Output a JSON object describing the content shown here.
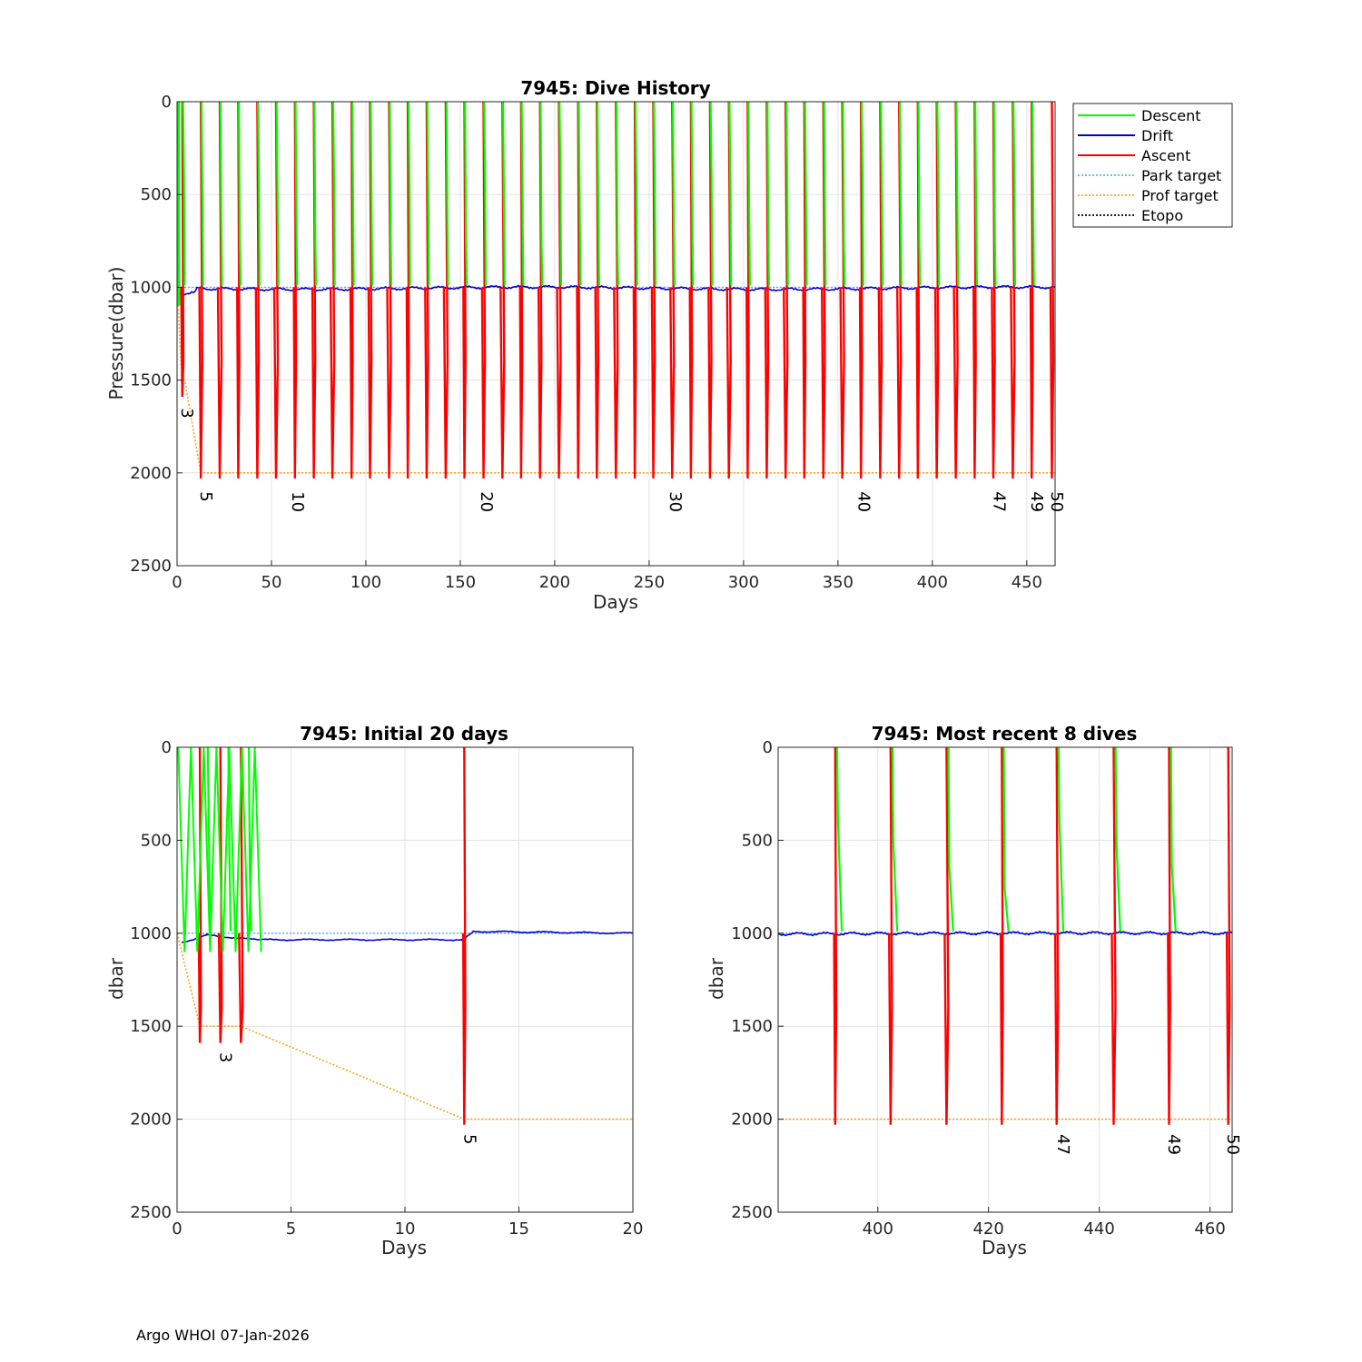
{
  "footer": "Argo WHOI 07-Jan-2026",
  "legend": [
    {
      "label": "Descent",
      "color": "#00ff00",
      "dash": "solid"
    },
    {
      "label": "Drift",
      "color": "#0000cc",
      "dash": "solid"
    },
    {
      "label": "Ascent",
      "color": "#ff0000",
      "dash": "solid"
    },
    {
      "label": "Park target",
      "color": "#4db8e8",
      "dash": "dotted"
    },
    {
      "label": "Prof target",
      "color": "#f5a623",
      "dash": "dotted"
    },
    {
      "label": "Etopo",
      "color": "#000000",
      "dash": "dotted"
    }
  ],
  "chart_data": [
    {
      "id": "history",
      "type": "line",
      "title": "7945: Dive History",
      "xlabel": "Days",
      "ylabel": "Pressure(dbar)",
      "xlim": [
        0,
        465
      ],
      "ylim": [
        0,
        2500
      ],
      "xticks": [
        0,
        50,
        100,
        150,
        200,
        250,
        300,
        350,
        400,
        450
      ],
      "yticks": [
        0,
        500,
        1000,
        1500,
        2000,
        2500
      ],
      "dive_days": [
        2.8,
        12.6,
        22.6,
        32.4,
        42.5,
        52.4,
        62.4,
        72.4,
        82.3,
        92.4,
        102.2,
        112.3,
        122.2,
        132.2,
        142.3,
        152.2,
        162.3,
        172.3,
        182.2,
        192.2,
        202.2,
        212.4,
        222.3,
        232.4,
        242.4,
        252.2,
        262.2,
        272.1,
        282.2,
        292.2,
        302.2,
        312.3,
        322.3,
        332.2,
        342.3,
        352.3,
        362.2,
        372.4,
        382.4,
        392.3,
        402.3,
        412.4,
        422.4,
        432.3,
        442.6,
        452.6,
        463.3
      ],
      "park_target_dbar": 1000,
      "prof_target": [
        [
          0,
          1000
        ],
        [
          2.5,
          1500
        ],
        [
          4,
          1500
        ],
        [
          12.6,
          2000
        ],
        [
          465,
          2000
        ]
      ],
      "cycle_labels": [
        {
          "text": "3",
          "day": 2.5,
          "p": 1650
        },
        {
          "text": "5",
          "day": 12.6,
          "p": 2100
        },
        {
          "text": "10",
          "day": 61,
          "p": 2100
        },
        {
          "text": "20",
          "day": 161,
          "p": 2100
        },
        {
          "text": "30",
          "day": 261,
          "p": 2100
        },
        {
          "text": "40",
          "day": 361,
          "p": 2100
        },
        {
          "text": "47",
          "day": 432.5,
          "p": 2100
        },
        {
          "text": "49",
          "day": 452.5,
          "p": 2100
        },
        {
          "text": "50",
          "day": 463,
          "p": 2100
        }
      ]
    },
    {
      "id": "initial",
      "type": "line",
      "title": "7945: Initial 20 days",
      "xlabel": "Days",
      "ylabel": "dbar",
      "xlim": [
        0,
        20
      ],
      "ylim": [
        0,
        2500
      ],
      "xticks": [
        0,
        5,
        10,
        15,
        20
      ],
      "yticks": [
        0,
        500,
        1000,
        1500,
        2000,
        2500
      ],
      "dive_days": [
        1.0,
        1.9,
        2.8,
        12.6
      ],
      "park_target_dbar": 1000,
      "prof_target": [
        [
          0,
          1000
        ],
        [
          1.0,
          1500
        ],
        [
          2.8,
          1500
        ],
        [
          12.6,
          2000
        ],
        [
          20,
          2000
        ]
      ],
      "drift_level": [
        [
          0.2,
          1050
        ],
        [
          1.3,
          1010
        ],
        [
          3.5,
          1035
        ],
        [
          12.5,
          1035
        ],
        [
          13.0,
          990
        ],
        [
          20,
          1000
        ]
      ],
      "cycle_labels": [
        {
          "text": "3",
          "day": 1.9,
          "p": 1640
        },
        {
          "text": "5",
          "day": 12.6,
          "p": 2080
        }
      ]
    },
    {
      "id": "recent",
      "type": "line",
      "title": "7945: Most recent 8 dives",
      "xlabel": "Days",
      "ylabel": "dbar",
      "xlim": [
        382,
        464
      ],
      "ylim": [
        0,
        2500
      ],
      "xticks": [
        400,
        420,
        440,
        460
      ],
      "yticks": [
        0,
        500,
        1000,
        1500,
        2000,
        2500
      ],
      "dive_days": [
        392.3,
        402.3,
        412.4,
        422.4,
        432.3,
        442.6,
        452.6,
        463.3
      ],
      "park_target_dbar": 1000,
      "prof_target": [
        [
          382,
          2000
        ],
        [
          464,
          2000
        ]
      ],
      "cycle_labels": [
        {
          "text": "47",
          "day": 432.5,
          "p": 2080
        },
        {
          "text": "49",
          "day": 452.5,
          "p": 2080
        },
        {
          "text": "50",
          "day": 463.2,
          "p": 2080
        }
      ]
    }
  ]
}
